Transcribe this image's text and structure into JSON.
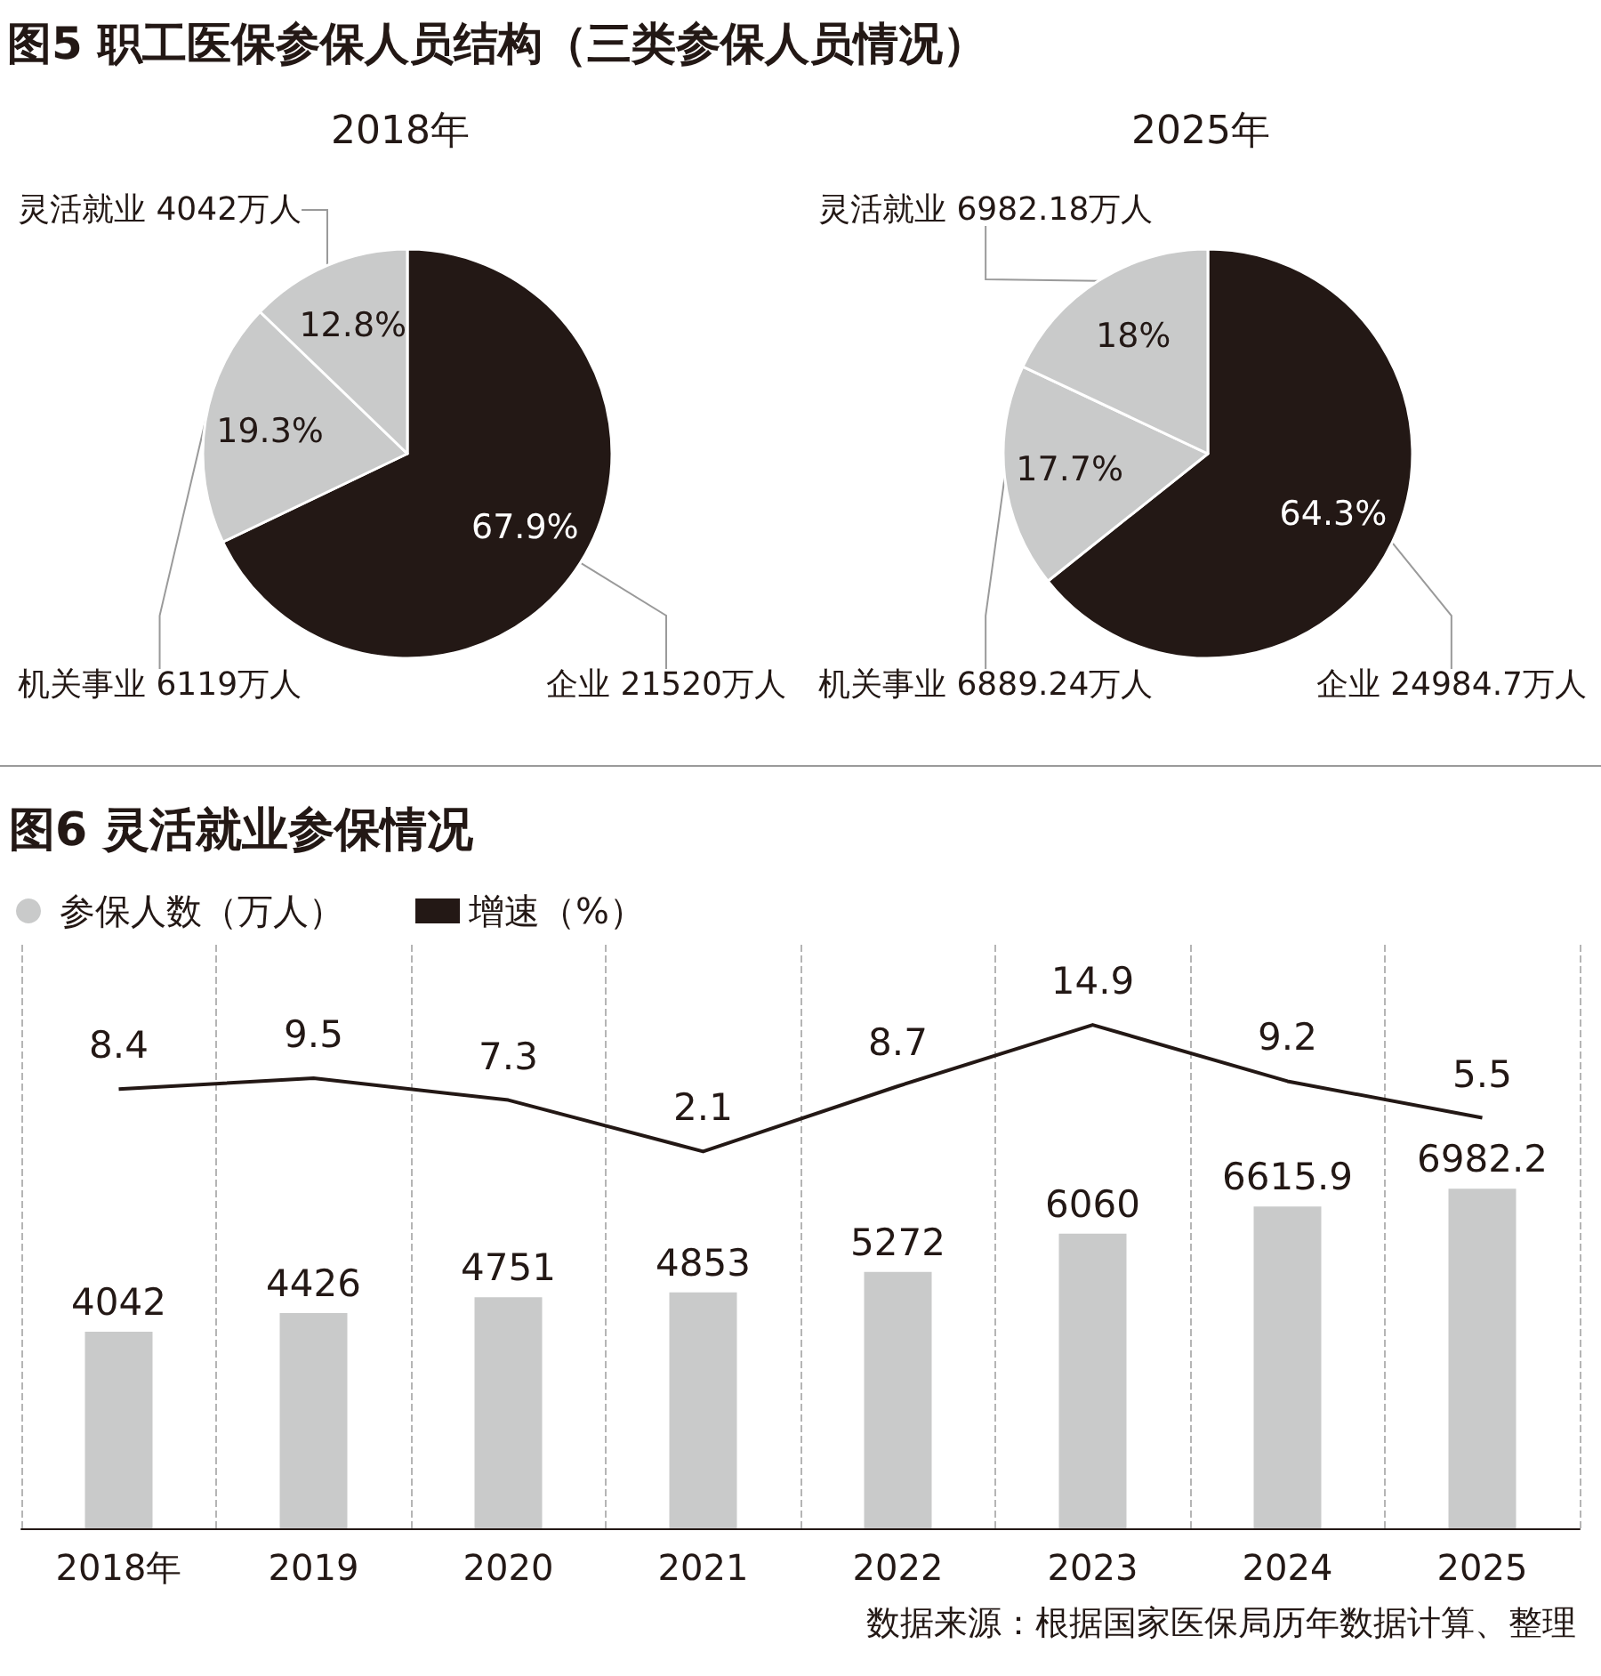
{
  "chart_data": [
    {
      "type": "pie",
      "title": "图5 职工医保参保人员结构（三类参保人员情况）",
      "subtitle": "2018年",
      "categories": [
        "企业 21520万人",
        "机关事业 6119万人",
        "灵活就业 4042万人"
      ],
      "values": [
        67.9,
        19.3,
        12.8
      ],
      "value_labels": [
        "67.9%",
        "19.3%",
        "12.8%"
      ],
      "colors": [
        "#231815",
        "#c9caca",
        "#c9caca"
      ]
    },
    {
      "type": "pie",
      "subtitle": "2025年",
      "categories": [
        "企业 24984.7万人",
        "机关事业 6889.24万人",
        "灵活就业 6982.18万人"
      ],
      "values": [
        64.3,
        17.7,
        18
      ],
      "value_labels": [
        "64.3%",
        "17.7%",
        "18%"
      ],
      "colors": [
        "#231815",
        "#c9caca",
        "#c9caca"
      ]
    },
    {
      "type": "bar",
      "title": "图6 灵活就业参保情况",
      "categories": [
        "2018年",
        "2019",
        "2020",
        "2021",
        "2022",
        "2023",
        "2024",
        "2025"
      ],
      "series": [
        {
          "name": "参保人数（万人）",
          "color": "#c9caca",
          "values": [
            4042,
            4426,
            4751,
            4853,
            5272,
            6060,
            6615.9,
            6982.2
          ]
        },
        {
          "name": "增速（%）",
          "type": "line",
          "axis": "y2",
          "color": "#231815",
          "values": [
            8.4,
            9.5,
            7.3,
            2.1,
            8.7,
            14.9,
            9.2,
            5.5
          ]
        }
      ],
      "ylim": [
        0,
        12000
      ],
      "y2lim": [
        -36,
        23
      ],
      "tick_labels": "x",
      "data_labels": true,
      "legend": "top left",
      "grid": "x",
      "marker": "none",
      "annotations": [
        "数据来源：根据国家医保局历年数据计算、整理"
      ]
    }
  ]
}
